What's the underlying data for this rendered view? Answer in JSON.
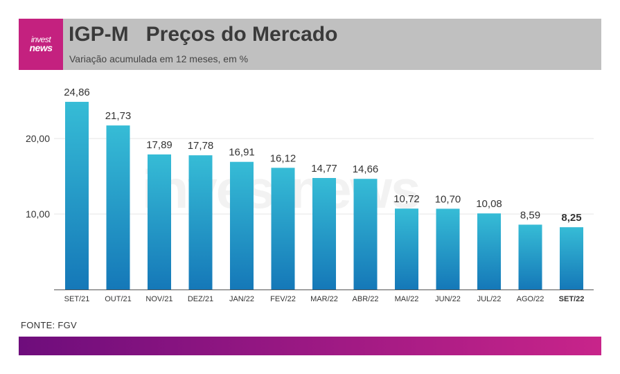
{
  "header": {
    "title": "IGP-M   Preços do Mercado",
    "subtitle": "Variação acumulada em 12 meses, em %",
    "logo_top": "invest",
    "logo_bottom": "news"
  },
  "watermark": "investnews",
  "source": "FONTE: FGV",
  "colors": {
    "header_bg": "#c0c0c0",
    "logo_bg": "#c4217f",
    "bar_top": "#36bcd6",
    "bar_bottom": "#1578b8",
    "footer_start": "#6e0d7c",
    "footer_end": "#c8248a"
  },
  "chart_data": {
    "type": "bar",
    "title": "IGP-M   Preços do Mercado",
    "subtitle": "Variação acumulada em 12 meses, em %",
    "categories": [
      "SET/21",
      "OUT/21",
      "NOV/21",
      "DEZ/21",
      "JAN/22",
      "FEV/22",
      "MAR/22",
      "ABR/22",
      "MAI/22",
      "JUN/22",
      "JUL/22",
      "AGO/22",
      "SET/22"
    ],
    "values": [
      24.86,
      21.73,
      17.89,
      17.78,
      16.91,
      16.12,
      14.77,
      14.66,
      10.72,
      10.7,
      10.08,
      8.59,
      8.25
    ],
    "value_labels": [
      "24,86",
      "21,73",
      "17,89",
      "17,78",
      "16,91",
      "16,12",
      "14,77",
      "14,66",
      "10,72",
      "10,70",
      "10,08",
      "8,59",
      "8,25"
    ],
    "highlight_index": 12,
    "yticks": [
      10,
      20
    ],
    "ytick_labels": [
      "10,00",
      "20,00"
    ],
    "ylim": [
      0,
      25
    ],
    "grid": true,
    "xlabel": "",
    "ylabel": ""
  }
}
